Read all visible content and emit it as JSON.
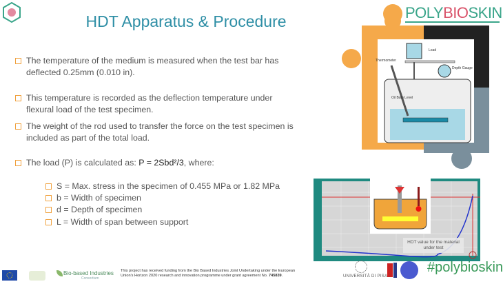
{
  "title": "HDT Apparatus & Procedure",
  "bullets": [
    {
      "lines": [
        "The temperature of the medium is measured when the test bar has",
        "deflected 0.25mm (0.010 in)."
      ]
    },
    {
      "lines": [
        "This temperature is recorded as the deflection temperature under",
        "flexural load of the test specimen."
      ]
    },
    {
      "lines": [
        "The weight of the rod used to transfer the force on the test specimen is",
        "included as part of the total load."
      ]
    },
    {
      "prefix": "The load (P) is calculated as: ",
      "formula": "P = 2Sbd²/3",
      "suffix": ", where:"
    }
  ],
  "sub_bullets": [
    "S = Max. stress in the specimen of 0.455 MPa or 1.82 MPa",
    "b = Width of specimen",
    "d = Depth of specimen",
    "L = Width of span between support"
  ],
  "diagram": {
    "load": "Load",
    "thermometer": "Thermometer",
    "depth_gauge": "Depth Gauge",
    "oil_bath": "Oil Bath Level"
  },
  "graph": {
    "annotation": "HDT value for the material under test"
  },
  "logos": {
    "polybioskin_a": "POLY",
    "polybioskin_b": "BIO",
    "polybioskin_c": "SKIN",
    "hashtag": "#polybioskin",
    "unipisa": "UNIVERSITÀ DI PISA",
    "bbi": "Bio-based Industries",
    "bbi_sub": "Consortium"
  },
  "funding": {
    "text": "This project has received funding from the Bio Based Industries Joint Undertaking under the European Union's Horizon 2020 research and innovation programme under grant agreement No. ",
    "grant": "745839"
  },
  "colors": {
    "title": "#2f8fa6",
    "bullet": "#f0a13e",
    "puzzle_orange": "#f5a94a",
    "puzzle_dark": "#222222",
    "puzzle_gray": "#7a8f9c",
    "chart_frame": "#1f8a80"
  }
}
